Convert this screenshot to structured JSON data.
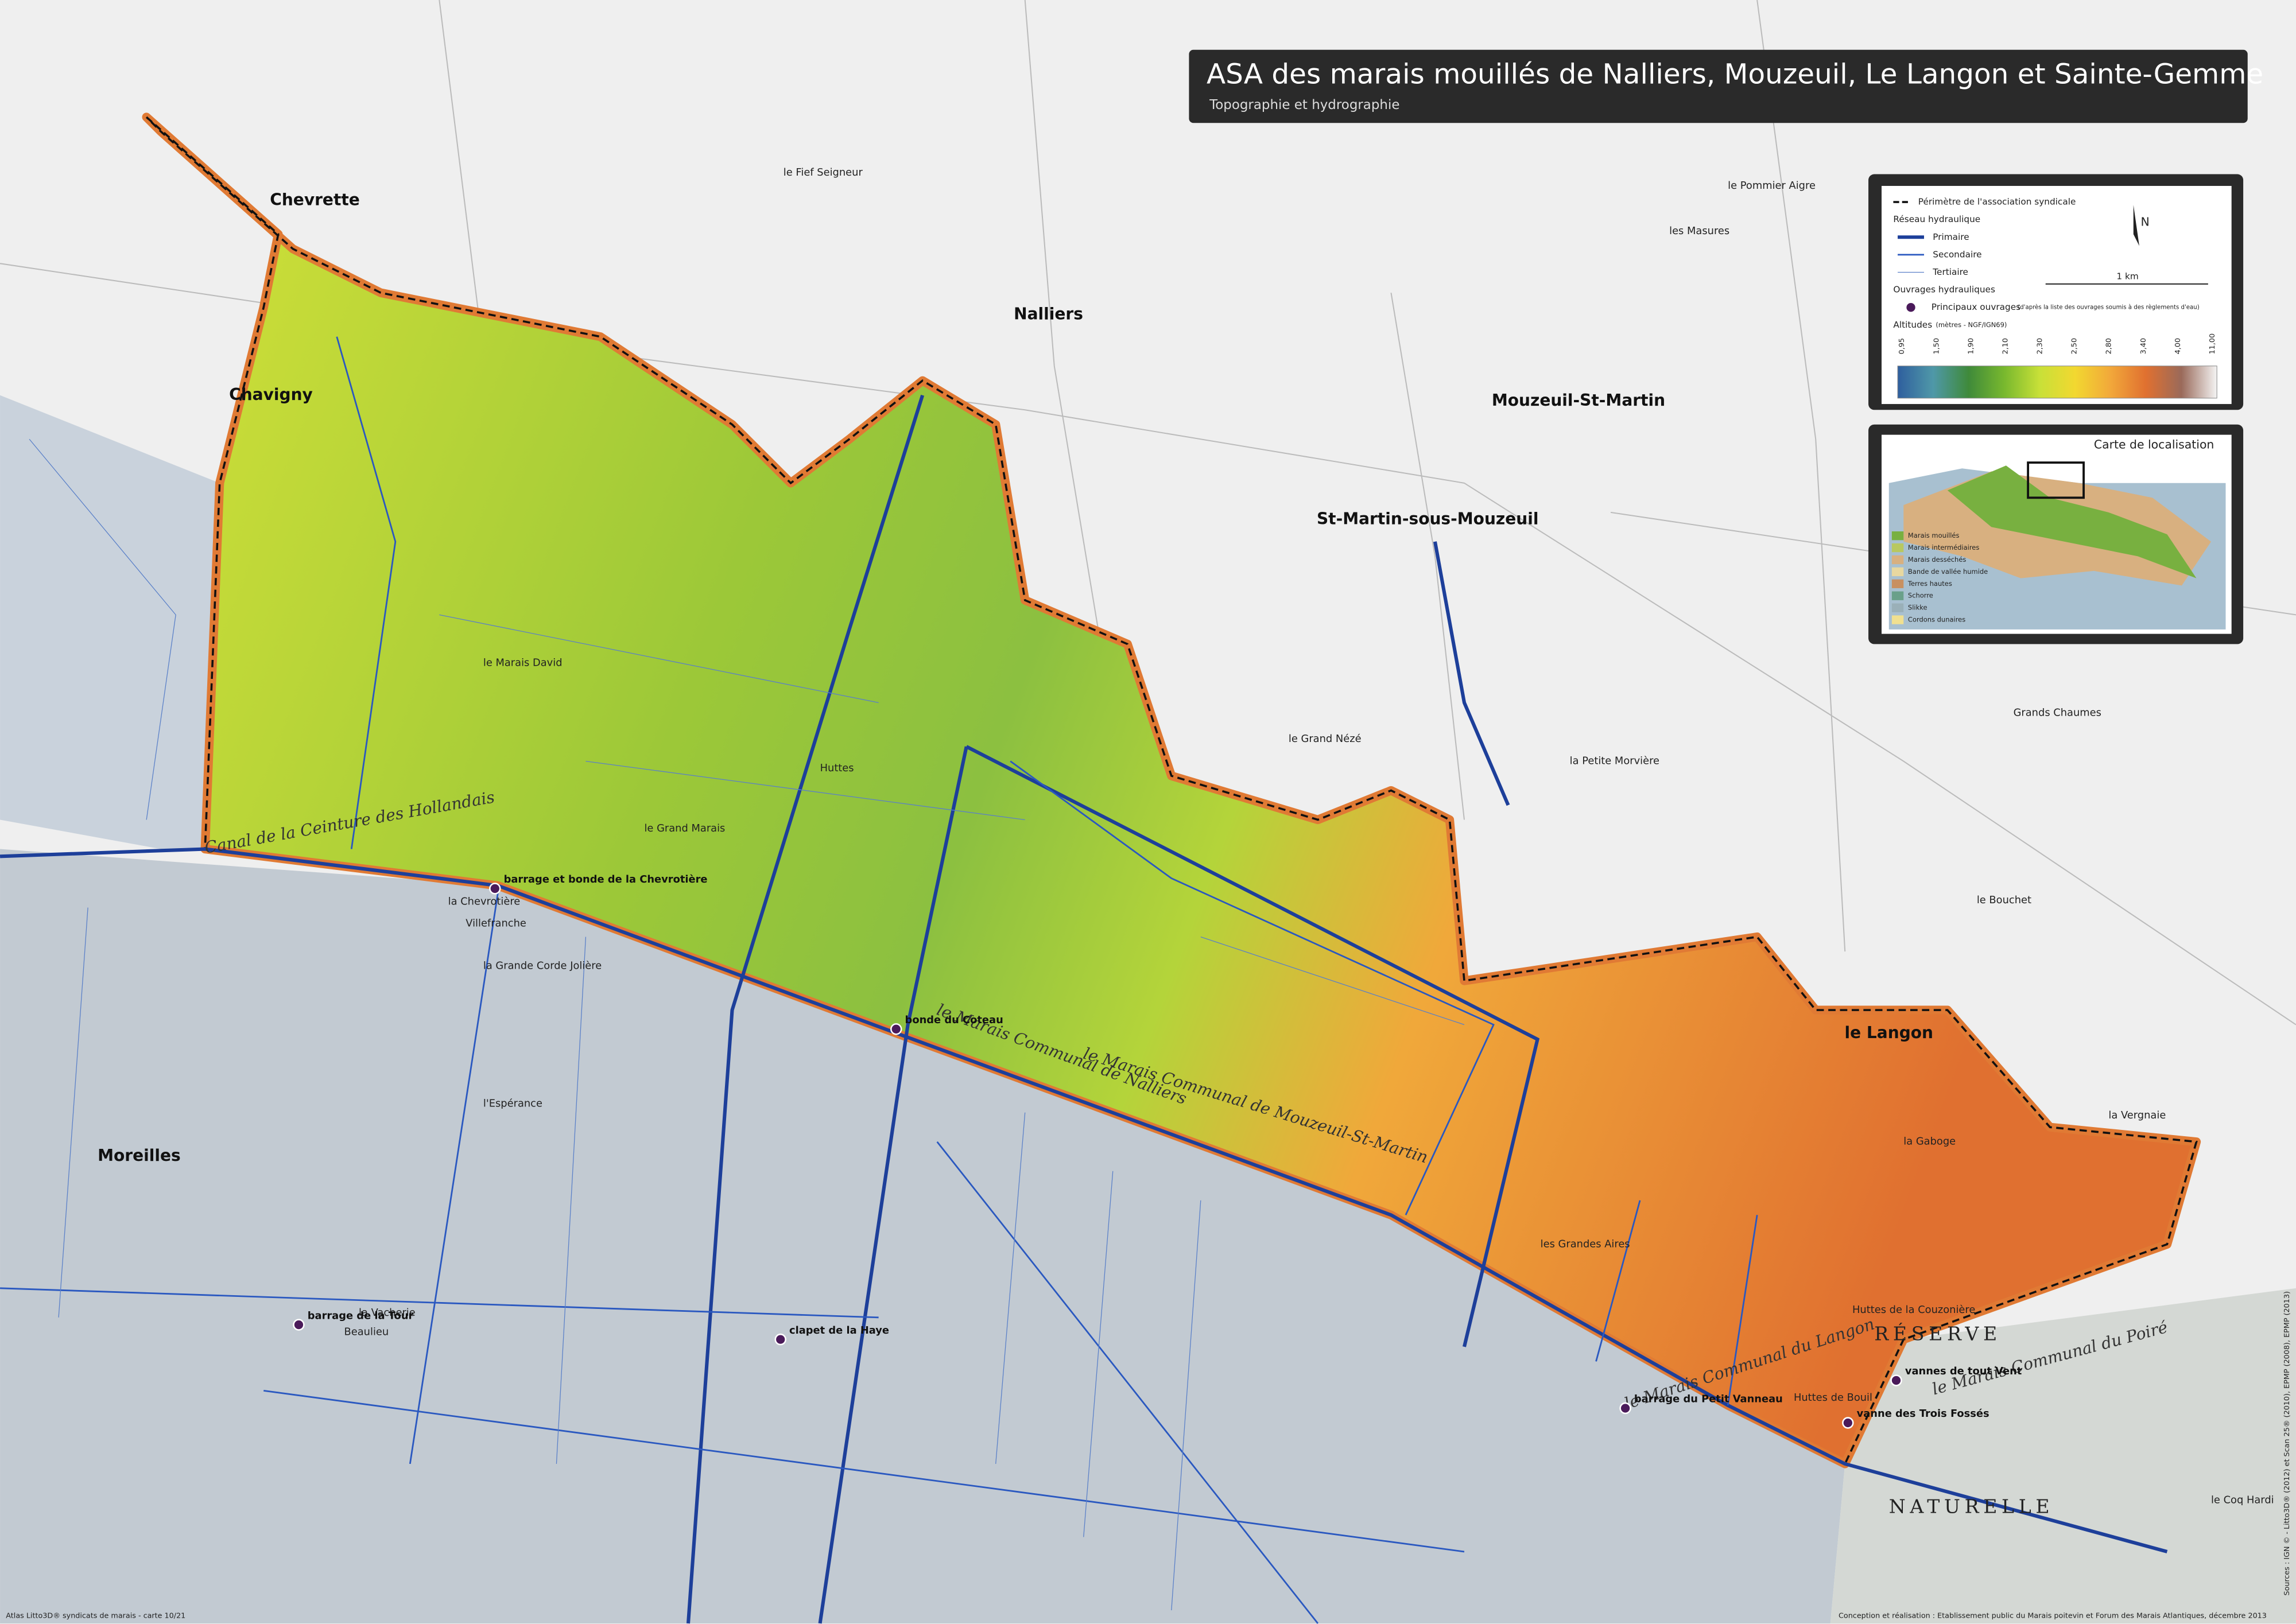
{
  "header": {
    "title": "ASA des marais mouillés de Nalliers, Mouzeuil, Le Langon et Sainte-Gemme",
    "subtitle": "Topographie et hydrographie"
  },
  "legend": {
    "perimeter": "Périmètre de l'association syndicale",
    "network": "Réseau hydraulique",
    "primary": "Primaire",
    "secondary": "Secondaire",
    "tertiary": "Tertiaire",
    "structures": "Ouvrages hydrauliques",
    "main_structures": "Principaux ouvrages",
    "main_structures_note": "(d'après la liste des ouvrages soumis à des règlements d'eau)",
    "altitudes": "Altitudes",
    "altitudes_unit": "(mètres - NGF/IGN69)",
    "altitude_ticks": [
      "0,95",
      "1,50",
      "1,90",
      "2,10",
      "2,30",
      "2,50",
      "2,80",
      "3,40",
      "4,00",
      "11,00"
    ],
    "altitude_colors": [
      "#2f5f9e",
      "#4f98a8",
      "#3f8a3a",
      "#78b82e",
      "#c8e038",
      "#f2d830",
      "#f2a83a",
      "#e07030",
      "#9a6a5a",
      "#f4f4f4"
    ],
    "scale": "1 km",
    "north": "N"
  },
  "locator": {
    "title": "Carte de localisation",
    "classes": [
      "Marais mouillés",
      "Marais intermédiaires",
      "Marais desséchés",
      "Bande de vallée humide",
      "Terres hautes",
      "Schorre",
      "Slikke",
      "Cordons dunaires"
    ],
    "colors": [
      "#78b040",
      "#b8c860",
      "#d8b080",
      "#e8d8a0",
      "#c89060",
      "#6aa08a",
      "#9ab0b8",
      "#f0e090"
    ]
  },
  "towns": [
    "Nalliers",
    "Mouzeuil-St-Martin",
    "le Langon",
    "Moreilles",
    "St-Martin-sous-Mouzeuil",
    "Chevrette",
    "Chavigny"
  ],
  "places": [
    "le Marais David",
    "le Grand Marais",
    "Huttes",
    "la Chevrotière",
    "Villefranche",
    "la Grande Corde Jolière",
    "le Fief Seigneur",
    "les Masures",
    "le Grand Nézé",
    "la Petite Morvière",
    "les Grandes Aires",
    "Huttes de la Couzonière",
    "la Gaboge",
    "le Pommier Aigre",
    "Grands Chaumes",
    "le Bouchet",
    "l'Espérance",
    "la Vacherie",
    "Beaulieu",
    "le Coq Hardi",
    "Huttes de Bouil",
    "la Vergnaie"
  ],
  "marshes": [
    "le Marais Communal de Nalliers",
    "le Marais Communal de Mouzeuil-St-Martin",
    "le Marais Communal du Langon",
    "le Marais Communal du Poiré",
    "Canal de la Ceinture des Hollandais"
  ],
  "reserve": [
    "RÉSERVE",
    "NATURELLE"
  ],
  "structures": [
    "barrage et bonde de la Chevrotière",
    "bonde du Coteau",
    "barrage de la Tour",
    "clapet de la Haye",
    "barrage du Petit Vanneau",
    "vannes de tout Vent",
    "vanne des Trois Fossés"
  ],
  "footer": {
    "left": "Atlas Litto3D® syndicats de marais - carte 10/21",
    "right": "Conception et réalisation : Etablissement public du Marais poitevin et Forum des Marais Atlantiques, décembre 2013",
    "sources": "Sources : IGN © - Litto3D® (2012) et Scan 25® (2010), EPMP (2008), EPMP (2013)"
  }
}
